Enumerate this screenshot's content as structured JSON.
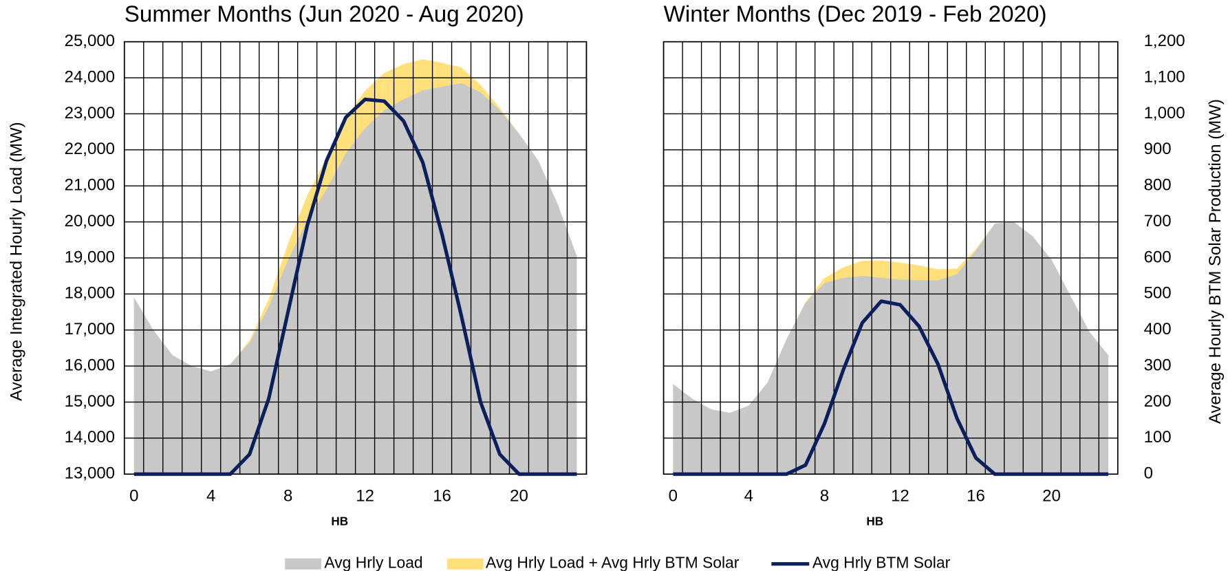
{
  "chart_data": [
    {
      "type": "area",
      "title": "Summer Months (Jun 2020 - Aug 2020)",
      "xlabel": "HB",
      "ylabel": "Average Integrated Hourly Load (MW)",
      "x": [
        0,
        1,
        2,
        3,
        4,
        5,
        6,
        7,
        8,
        9,
        10,
        11,
        12,
        13,
        14,
        15,
        16,
        17,
        18,
        19,
        20,
        21,
        22,
        23
      ],
      "xlim": [
        -0.5,
        23.5
      ],
      "xticks": [
        0,
        4,
        8,
        12,
        16,
        20
      ],
      "ylim": [
        13000,
        25000
      ],
      "yticks": [
        {
          "value": 13000,
          "label": "13,000"
        },
        {
          "value": 14000,
          "label": "14,000"
        },
        {
          "value": 15000,
          "label": "15,000"
        },
        {
          "value": 16000,
          "label": "16,000"
        },
        {
          "value": 17000,
          "label": "17,000"
        },
        {
          "value": 18000,
          "label": "18,000"
        },
        {
          "value": 19000,
          "label": "19,000"
        },
        {
          "value": 20000,
          "label": "20,000"
        },
        {
          "value": 21000,
          "label": "21,000"
        },
        {
          "value": 22000,
          "label": "22,000"
        },
        {
          "value": 23000,
          "label": "23,000"
        },
        {
          "value": 24000,
          "label": "24,000"
        },
        {
          "value": 25000,
          "label": "25,000"
        }
      ],
      "y2lim": [
        0,
        1200
      ],
      "grid": true,
      "series": [
        {
          "name": "Avg Hrly Load",
          "color": "#c8c8c8",
          "values": [
            17900,
            17000,
            16300,
            16000,
            15850,
            16050,
            16650,
            17650,
            18950,
            20050,
            20900,
            21900,
            22600,
            23100,
            23400,
            23650,
            23750,
            23850,
            23600,
            23100,
            22450,
            21700,
            20500,
            19050
          ]
        },
        {
          "name": "Avg Hrly Load + Avg Hrly BTM Solar",
          "color": "#ffe07a",
          "values": [
            17900,
            17000,
            16300,
            16000,
            15850,
            16050,
            16705,
            17860,
            19400,
            20740,
            21770,
            22890,
            23640,
            24135,
            24380,
            24515,
            24415,
            24290,
            23800,
            23155,
            22450,
            21700,
            20500,
            19050
          ]
        },
        {
          "name": "Avg Hrly BTM Solar",
          "color": "#0b1f5c",
          "axis": "y2",
          "values": [
            0,
            0,
            0,
            0,
            0,
            0,
            55,
            210,
            450,
            690,
            870,
            990,
            1040,
            1035,
            980,
            865,
            665,
            440,
            200,
            55,
            0,
            0,
            0,
            0
          ]
        }
      ]
    },
    {
      "type": "area",
      "title": "Winter Months (Dec 2019 - Feb 2020)",
      "xlabel": "HB",
      "y2label": "Average Hourly BTM Solar Production (MW)",
      "x": [
        0,
        1,
        2,
        3,
        4,
        5,
        6,
        7,
        8,
        9,
        10,
        11,
        12,
        13,
        14,
        15,
        16,
        17,
        18,
        19,
        20,
        21,
        22,
        23
      ],
      "xlim": [
        -0.5,
        23.5
      ],
      "xticks": [
        0,
        4,
        8,
        12,
        16,
        20
      ],
      "ylim": [
        13000,
        25000
      ],
      "y2lim": [
        0,
        1200
      ],
      "y2ticks": [
        0,
        100,
        200,
        300,
        400,
        500,
        600,
        700,
        800,
        900,
        {
          "value": 1000,
          "label": "1,000"
        },
        {
          "value": 1100,
          "label": "1,100"
        },
        {
          "value": 1200,
          "label": "1,200"
        }
      ],
      "grid": true,
      "series": [
        {
          "name": "Avg Hrly Load",
          "color": "#c8c8c8",
          "values": [
            15500,
            15100,
            14800,
            14700,
            14900,
            15550,
            16750,
            17750,
            18300,
            18450,
            18500,
            18450,
            18400,
            18380,
            18380,
            18550,
            19200,
            19950,
            20000,
            19600,
            18950,
            17950,
            16950,
            16300
          ]
        },
        {
          "name": "Avg Hrly Load + Avg Hrly BTM Solar",
          "color": "#ffe07a",
          "values": [
            15500,
            15100,
            14800,
            14700,
            14900,
            15550,
            16750,
            17775,
            18440,
            18740,
            18920,
            18930,
            18870,
            18790,
            18685,
            18705,
            19245,
            19950,
            20000,
            19600,
            18950,
            17950,
            16950,
            16300
          ]
        },
        {
          "name": "Avg Hrly BTM Solar",
          "color": "#0b1f5c",
          "axis": "y2",
          "values": [
            0,
            0,
            0,
            0,
            0,
            0,
            0,
            25,
            140,
            290,
            420,
            480,
            470,
            410,
            305,
            155,
            45,
            0,
            0,
            0,
            0,
            0,
            0,
            0
          ]
        }
      ]
    }
  ]
}
